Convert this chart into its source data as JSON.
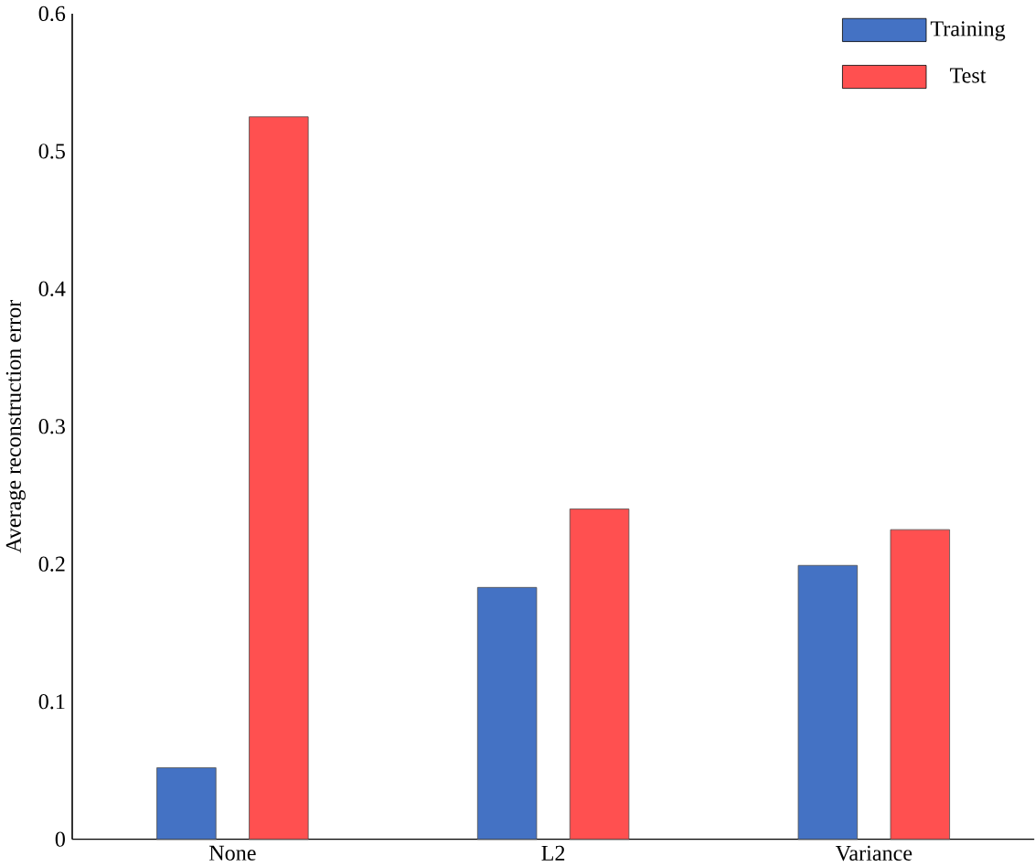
{
  "chart_data": {
    "type": "bar",
    "ylabel": "Average reconstruction error",
    "categories": [
      "None",
      "L2",
      "Variance"
    ],
    "series": [
      {
        "name": "Training",
        "color": "#4472c4",
        "values": [
          0.052,
          0.183,
          0.199
        ]
      },
      {
        "name": "Test",
        "color": "#ff5050",
        "values": [
          0.525,
          0.24,
          0.225
        ]
      }
    ],
    "ylim": [
      0,
      0.6
    ],
    "yticks": [
      0,
      0.1,
      0.2,
      0.3,
      0.4,
      0.5,
      0.6
    ],
    "grid": false,
    "legend": "top right"
  }
}
